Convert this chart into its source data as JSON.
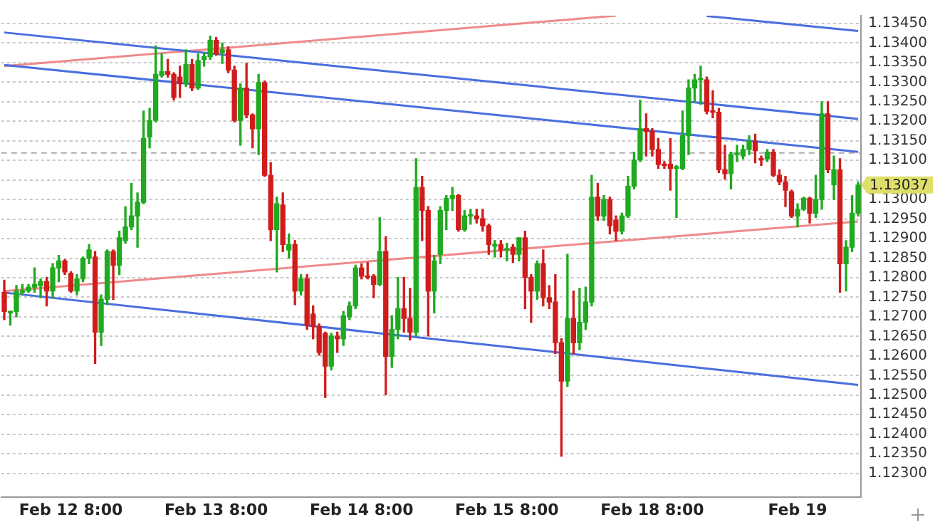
{
  "chart_data": {
    "type": "candlestick",
    "categories": [
      null,
      null,
      null,
      null,
      null,
      null,
      null,
      null,
      null,
      null,
      null,
      "Feb 12 8:00",
      null,
      null,
      null,
      null,
      null,
      null,
      null,
      null,
      null,
      null,
      null,
      null,
      null,
      null,
      null,
      null,
      null,
      null,
      null,
      null,
      null,
      null,
      null,
      "Feb 13 8:00",
      null,
      null,
      null,
      null,
      null,
      null,
      null,
      null,
      null,
      null,
      null,
      null,
      null,
      null,
      null,
      null,
      null,
      null,
      null,
      null,
      null,
      null,
      null,
      "Feb 14 8:00",
      null,
      null,
      null,
      null,
      null,
      null,
      null,
      null,
      null,
      null,
      null,
      null,
      null,
      null,
      null,
      null,
      null,
      null,
      null,
      null,
      null,
      null,
      null,
      "Feb 15 8:00",
      null,
      null,
      null,
      null,
      null,
      null,
      null,
      null,
      null,
      null,
      null,
      null,
      null,
      null,
      null,
      null,
      null,
      null,
      null,
      null,
      null,
      null,
      null,
      "Feb 18 8:00",
      null,
      null,
      null,
      null,
      null,
      null,
      null,
      null,
      null,
      null,
      null,
      null,
      null,
      null,
      null,
      null,
      null,
      null,
      null,
      null,
      null,
      null,
      null,
      "Feb 19",
      null,
      null,
      null,
      null,
      null,
      null,
      null,
      null,
      null,
      null
    ],
    "ohlc": [
      [
        1.12763,
        1.12794,
        1.12693,
        1.12714
      ],
      [
        1.1271,
        1.12714,
        1.12679,
        1.12714
      ],
      [
        1.12714,
        1.1278,
        1.127,
        1.12766
      ],
      [
        1.12763,
        1.12783,
        1.12756,
        1.12766
      ],
      [
        1.12766,
        1.12783,
        1.12763,
        1.12776
      ],
      [
        1.12776,
        1.12825,
        1.12763,
        1.12783
      ],
      [
        1.1278,
        1.12797,
        1.12749,
        1.1279
      ],
      [
        1.1279,
        1.12801,
        1.12728,
        1.12766
      ],
      [
        1.12766,
        1.12836,
        1.12749,
        1.12825
      ],
      [
        1.12825,
        1.12857,
        1.1279,
        1.12843
      ],
      [
        1.12843,
        1.12846,
        1.12808,
        1.12815
      ],
      [
        1.12811,
        1.12815,
        1.12763,
        1.12766
      ],
      [
        1.12766,
        1.12808,
        1.12756,
        1.12797
      ],
      [
        1.12797,
        1.12853,
        1.1279,
        1.1285
      ],
      [
        1.1285,
        1.12885,
        1.12836,
        1.12871
      ],
      [
        1.12853,
        1.12867,
        1.12581,
        1.12661
      ],
      [
        1.12661,
        1.12756,
        1.12627,
        1.12745
      ],
      [
        1.12745,
        1.12871,
        1.12731,
        1.12867
      ],
      [
        1.12867,
        1.12871,
        1.12745,
        1.12832
      ],
      [
        1.12832,
        1.12919,
        1.12808,
        1.12902
      ],
      [
        1.12895,
        1.12982,
        1.12888,
        1.1293
      ],
      [
        1.1293,
        1.13041,
        1.12923,
        1.12958
      ],
      [
        1.12958,
        1.13017,
        1.12878,
        1.12993
      ],
      [
        1.12993,
        1.13226,
        1.12989,
        1.13156
      ],
      [
        1.1316,
        1.13233,
        1.13132,
        1.13202
      ],
      [
        1.13202,
        1.13393,
        1.13198,
        1.1332
      ],
      [
        1.13317,
        1.13372,
        1.13313,
        1.13327
      ],
      [
        1.13327,
        1.13358,
        1.13313,
        1.1332
      ],
      [
        1.1332,
        1.13324,
        1.13254,
        1.13261
      ],
      [
        1.13313,
        1.13341,
        1.13261,
        1.13296
      ],
      [
        1.13296,
        1.13383,
        1.13289,
        1.13345
      ],
      [
        1.13345,
        1.13358,
        1.13278,
        1.13285
      ],
      [
        1.13285,
        1.13372,
        1.13282,
        1.13355
      ],
      [
        1.13358,
        1.13376,
        1.13341,
        1.13365
      ],
      [
        1.13365,
        1.13418,
        1.13358,
        1.13407
      ],
      [
        1.13407,
        1.13414,
        1.13369,
        1.13372
      ],
      [
        1.13376,
        1.134,
        1.13348,
        1.13383
      ],
      [
        1.13383,
        1.1339,
        1.13324,
        1.13331
      ],
      [
        1.13331,
        1.13341,
        1.13198,
        1.13202
      ],
      [
        1.13202,
        1.13296,
        1.13139,
        1.13285
      ],
      [
        1.13285,
        1.13348,
        1.13209,
        1.13216
      ],
      [
        1.13216,
        1.13219,
        1.13132,
        1.13181
      ],
      [
        1.13181,
        1.1332,
        1.13115,
        1.13299
      ],
      [
        1.13299,
        1.13303,
        1.13059,
        1.13062
      ],
      [
        1.13062,
        1.13094,
        1.12895,
        1.12923
      ],
      [
        1.12923,
        1.13006,
        1.12815,
        1.12989
      ],
      [
        1.12986,
        1.13017,
        1.12867,
        1.12885
      ],
      [
        1.12871,
        1.12912,
        1.1285,
        1.12885
      ],
      [
        1.12885,
        1.12895,
        1.12731,
        1.12766
      ],
      [
        1.12766,
        1.12808,
        1.12756,
        1.12797
      ],
      [
        1.12797,
        1.12808,
        1.12668,
        1.12679
      ],
      [
        1.12707,
        1.12728,
        1.12644,
        1.12675
      ],
      [
        1.12675,
        1.12682,
        1.12602,
        1.12609
      ],
      [
        1.12658,
        1.12661,
        1.12494,
        1.12574
      ],
      [
        1.12574,
        1.12658,
        1.12564,
        1.12651
      ],
      [
        1.12651,
        1.12661,
        1.12609,
        1.12644
      ],
      [
        1.12644,
        1.12714,
        1.12627,
        1.12703
      ],
      [
        1.127,
        1.12738,
        1.12693,
        1.12728
      ],
      [
        1.12728,
        1.12832,
        1.12721,
        1.12825
      ],
      [
        1.12825,
        1.12836,
        1.12797,
        1.12804
      ],
      [
        1.12804,
        1.12839,
        1.12797,
        1.12801
      ],
      [
        1.12804,
        1.12808,
        1.12749,
        1.12783
      ],
      [
        1.12783,
        1.12954,
        1.1278,
        1.12867
      ],
      [
        1.12867,
        1.12905,
        1.12501,
        1.12599
      ],
      [
        1.12599,
        1.12703,
        1.12571,
        1.12668
      ],
      [
        1.12668,
        1.12801,
        1.12644,
        1.12721
      ],
      [
        1.12721,
        1.12801,
        1.12661,
        1.12696
      ],
      [
        1.12696,
        1.12773,
        1.12641,
        1.12661
      ],
      [
        1.12661,
        1.13104,
        1.12651,
        1.13031
      ],
      [
        1.13031,
        1.13059,
        1.12895,
        1.12972
      ],
      [
        1.12972,
        1.12982,
        1.12651,
        1.12766
      ],
      [
        1.12766,
        1.12857,
        1.1271,
        1.12843
      ],
      [
        1.1286,
        1.12982,
        1.12836,
        1.12972
      ],
      [
        1.12972,
        1.1301,
        1.12923,
        1.13003
      ],
      [
        1.13003,
        1.13031,
        1.12972,
        1.1301
      ],
      [
        1.1301,
        1.13013,
        1.12919,
        1.12923
      ],
      [
        1.12923,
        1.12972,
        1.12919,
        1.12958
      ],
      [
        1.12958,
        1.12975,
        1.12937,
        1.12958
      ],
      [
        1.12958,
        1.12975,
        1.1294,
        1.12951
      ],
      [
        1.12951,
        1.12975,
        1.12919,
        1.12933
      ],
      [
        1.12933,
        1.12937,
        1.1286,
        1.12885
      ],
      [
        1.12881,
        1.12895,
        1.12853,
        1.12885
      ],
      [
        1.12885,
        1.12895,
        1.12853,
        1.12871
      ],
      [
        1.12871,
        1.12888,
        1.12843,
        1.12874
      ],
      [
        1.12878,
        1.12885,
        1.12839,
        1.1286
      ],
      [
        1.1286,
        1.12902,
        1.12843,
        1.12902
      ],
      [
        1.12902,
        1.12919,
        1.12721,
        1.12801
      ],
      [
        1.12801,
        1.12808,
        1.12686,
        1.12766
      ],
      [
        1.12766,
        1.12843,
        1.12745,
        1.12836
      ],
      [
        1.12836,
        1.12871,
        1.12728,
        1.12749
      ],
      [
        1.12749,
        1.1278,
        1.12721,
        1.12738
      ],
      [
        1.12738,
        1.12808,
        1.12606,
        1.12634
      ],
      [
        1.12634,
        1.12644,
        1.12344,
        1.12536
      ],
      [
        1.12536,
        1.1286,
        1.12522,
        1.12696
      ],
      [
        1.12696,
        1.12766,
        1.12606,
        1.12634
      ],
      [
        1.12634,
        1.12773,
        1.12616,
        1.12686
      ],
      [
        1.12686,
        1.12776,
        1.12668,
        1.12738
      ],
      [
        1.12738,
        1.13062,
        1.12728,
        1.13006
      ],
      [
        1.13006,
        1.13041,
        1.12947,
        1.12958
      ],
      [
        1.12958,
        1.1301,
        1.12947,
        1.13
      ],
      [
        1.13,
        1.13006,
        1.12912,
        1.12933
      ],
      [
        1.12947,
        1.12958,
        1.12895,
        1.12919
      ],
      [
        1.12919,
        1.12965,
        1.12912,
        1.12958
      ],
      [
        1.12958,
        1.13059,
        1.12954,
        1.13034
      ],
      [
        1.13034,
        1.13121,
        1.13027,
        1.13101
      ],
      [
        1.13101,
        1.13254,
        1.13097,
        1.13181
      ],
      [
        1.13181,
        1.13219,
        1.13111,
        1.13174
      ],
      [
        1.13174,
        1.13181,
        1.13111,
        1.13128
      ],
      [
        1.13128,
        1.13156,
        1.1308,
        1.1309
      ],
      [
        1.1309,
        1.13097,
        1.1308,
        1.13087
      ],
      [
        1.1309,
        1.13156,
        1.13024,
        1.1308
      ],
      [
        1.1308,
        1.13087,
        1.12954,
        1.1308
      ],
      [
        1.1308,
        1.13226,
        1.13076,
        1.13163
      ],
      [
        1.13163,
        1.13306,
        1.13115,
        1.13285
      ],
      [
        1.13285,
        1.1332,
        1.1325,
        1.13306
      ],
      [
        1.13306,
        1.13341,
        1.13243,
        1.13306
      ],
      [
        1.13306,
        1.13313,
        1.13219,
        1.13226
      ],
      [
        1.13226,
        1.13278,
        1.13209,
        1.13223
      ],
      [
        1.13223,
        1.13233,
        1.13069,
        1.13076
      ],
      [
        1.13076,
        1.13139,
        1.13052,
        1.13066
      ],
      [
        1.13066,
        1.13121,
        1.13027,
        1.13115
      ],
      [
        1.13115,
        1.13139,
        1.13097,
        1.13115
      ],
      [
        1.13111,
        1.13139,
        1.13104,
        1.13128
      ],
      [
        1.13128,
        1.13163,
        1.13115,
        1.13149
      ],
      [
        1.13149,
        1.13167,
        1.13094,
        1.13125
      ],
      [
        1.13104,
        1.13111,
        1.13087,
        1.13101
      ],
      [
        1.13104,
        1.13128,
        1.13097,
        1.13121
      ],
      [
        1.13121,
        1.13128,
        1.13059,
        1.13062
      ],
      [
        1.13062,
        1.13076,
        1.13038,
        1.13045
      ],
      [
        1.13045,
        1.13059,
        1.12982,
        1.13024
      ],
      [
        1.1302,
        1.13024,
        1.12954,
        1.12958
      ],
      [
        1.12958,
        1.12989,
        1.1293,
        1.12975
      ],
      [
        1.12975,
        1.13006,
        1.12972,
        1.13003
      ],
      [
        1.13003,
        1.13006,
        1.1294,
        1.12965
      ],
      [
        1.12965,
        1.13062,
        1.12954,
        1.13
      ],
      [
        1.13,
        1.1325,
        1.12975,
        1.13219
      ],
      [
        1.13219,
        1.1325,
        1.13069,
        1.13076
      ],
      [
        1.13038,
        1.13111,
        1.13,
        1.13076
      ],
      [
        1.13076,
        1.13104,
        1.12763,
        1.12836
      ],
      [
        1.12836,
        1.12895,
        1.12766,
        1.12878
      ],
      [
        1.12878,
        1.1301,
        1.12867,
        1.12965
      ],
      [
        1.12965,
        1.13045,
        1.12958,
        1.13037
      ]
    ],
    "series": [
      {
        "type": "line",
        "color": "#4a6ee0",
        "values": [
          1.13427,
          null,
          null,
          null,
          null,
          null,
          null,
          null,
          null,
          null,
          null,
          null,
          null,
          null,
          null,
          null,
          null,
          null,
          null,
          null,
          null,
          null,
          null,
          null,
          null,
          null,
          null,
          null,
          null,
          null,
          null,
          null,
          null,
          null,
          null,
          null,
          null,
          null,
          null,
          null,
          null,
          null,
          null,
          null,
          null,
          null,
          null,
          null,
          null,
          null,
          null,
          null,
          null,
          null,
          null,
          null,
          null,
          null,
          null,
          null,
          null,
          null,
          null,
          null,
          null,
          null,
          null,
          null,
          null,
          null,
          null,
          null,
          null,
          null,
          null,
          null,
          null,
          null,
          null,
          null,
          null,
          null,
          null,
          null,
          null,
          null,
          null,
          null,
          null,
          null,
          null,
          null,
          null,
          null,
          null,
          null,
          null,
          null,
          null,
          null,
          null,
          null,
          null,
          null,
          null,
          null,
          null,
          null,
          null,
          null,
          null,
          null,
          null,
          null,
          null,
          null,
          null,
          null,
          null,
          null,
          null,
          null,
          null,
          null,
          null,
          null,
          null,
          null,
          null,
          null,
          null,
          null,
          null,
          null,
          null,
          null,
          null,
          null,
          null,
          null,
          null,
          1.13206
        ]
      },
      {
        "type": "line",
        "color": "#4a6ee0",
        "values": [
          1.13344,
          null,
          null,
          null,
          null,
          null,
          null,
          null,
          null,
          null,
          null,
          null,
          null,
          null,
          null,
          null,
          null,
          null,
          null,
          null,
          null,
          null,
          null,
          null,
          null,
          null,
          null,
          null,
          null,
          null,
          null,
          null,
          null,
          null,
          null,
          null,
          null,
          null,
          null,
          null,
          null,
          null,
          null,
          null,
          null,
          null,
          null,
          null,
          null,
          null,
          null,
          null,
          null,
          null,
          null,
          null,
          null,
          null,
          null,
          null,
          null,
          null,
          null,
          null,
          null,
          null,
          null,
          null,
          null,
          null,
          null,
          null,
          null,
          null,
          null,
          null,
          null,
          null,
          null,
          null,
          null,
          null,
          null,
          null,
          null,
          null,
          null,
          null,
          null,
          null,
          null,
          null,
          null,
          null,
          null,
          null,
          null,
          null,
          null,
          null,
          null,
          null,
          null,
          null,
          null,
          null,
          null,
          null,
          null,
          null,
          null,
          null,
          null,
          null,
          null,
          null,
          null,
          null,
          null,
          null,
          null,
          null,
          null,
          null,
          null,
          null,
          null,
          null,
          null,
          null,
          null,
          null,
          null,
          null,
          null,
          null,
          null,
          null,
          null,
          null,
          null,
          1.13122
        ]
      },
      {
        "type": "line",
        "color": "#4a6ee0",
        "values": [
          null,
          null,
          null,
          null,
          null,
          null,
          null,
          null,
          null,
          null,
          null,
          null,
          null,
          null,
          null,
          null,
          null,
          null,
          null,
          null,
          null,
          null,
          null,
          null,
          null,
          null,
          null,
          null,
          null,
          null,
          null,
          null,
          null,
          null,
          null,
          null,
          null,
          null,
          null,
          null,
          null,
          null,
          null,
          null,
          null,
          null,
          null,
          null,
          null,
          null,
          null,
          null,
          null,
          null,
          null,
          null,
          null,
          null,
          null,
          null,
          null,
          null,
          null,
          null,
          null,
          null,
          null,
          null,
          null,
          null,
          null,
          null,
          null,
          null,
          null,
          null,
          null,
          null,
          null,
          null,
          null,
          null,
          null,
          null,
          null,
          null,
          null,
          null,
          null,
          null,
          null,
          null,
          null,
          null,
          null,
          null,
          null,
          null,
          null,
          null,
          null,
          null,
          null,
          null,
          null,
          null,
          null,
          null,
          null,
          null,
          null,
          null,
          null,
          null,
          null,
          null,
          1.13469,
          null,
          null,
          null,
          null,
          null,
          null,
          null,
          null,
          null,
          null,
          null,
          null,
          null,
          null,
          null,
          null,
          null,
          null,
          null,
          null,
          null,
          null,
          null,
          null,
          1.13431
        ]
      },
      {
        "type": "line",
        "color": "#4a6ee0",
        "values": [
          1.12762,
          null,
          null,
          null,
          null,
          null,
          null,
          null,
          null,
          null,
          null,
          null,
          null,
          null,
          null,
          null,
          null,
          null,
          null,
          null,
          null,
          null,
          null,
          null,
          null,
          null,
          null,
          null,
          null,
          null,
          null,
          null,
          null,
          null,
          null,
          null,
          null,
          null,
          null,
          null,
          null,
          null,
          null,
          null,
          null,
          null,
          null,
          null,
          null,
          null,
          null,
          null,
          null,
          null,
          null,
          null,
          null,
          null,
          null,
          null,
          null,
          null,
          null,
          null,
          null,
          null,
          null,
          null,
          null,
          null,
          null,
          null,
          null,
          null,
          null,
          null,
          null,
          null,
          null,
          null,
          null,
          null,
          null,
          null,
          null,
          null,
          null,
          null,
          null,
          null,
          null,
          null,
          null,
          null,
          null,
          null,
          null,
          null,
          null,
          null,
          null,
          null,
          null,
          null,
          null,
          null,
          null,
          null,
          null,
          null,
          null,
          null,
          null,
          null,
          null,
          null,
          null,
          null,
          null,
          null,
          null,
          null,
          null,
          null,
          null,
          null,
          null,
          null,
          null,
          null,
          null,
          null,
          null,
          null,
          null,
          null,
          null,
          null,
          null,
          null,
          null,
          1.12526
        ]
      },
      {
        "type": "line",
        "color": "#f08a8a",
        "values": [
          1.12766,
          null,
          null,
          null,
          null,
          null,
          null,
          null,
          null,
          null,
          null,
          null,
          null,
          null,
          null,
          null,
          null,
          null,
          null,
          null,
          null,
          null,
          null,
          null,
          null,
          null,
          null,
          null,
          null,
          null,
          null,
          null,
          null,
          null,
          null,
          null,
          null,
          null,
          null,
          null,
          null,
          null,
          null,
          null,
          null,
          null,
          null,
          null,
          null,
          null,
          null,
          null,
          null,
          null,
          null,
          null,
          null,
          null,
          null,
          null,
          null,
          null,
          null,
          null,
          null,
          null,
          null,
          null,
          null,
          null,
          null,
          null,
          null,
          null,
          null,
          null,
          null,
          null,
          null,
          null,
          null,
          null,
          null,
          null,
          null,
          null,
          null,
          null,
          null,
          null,
          null,
          null,
          null,
          null,
          null,
          null,
          null,
          null,
          null,
          null,
          null,
          null,
          null,
          null,
          null,
          null,
          null,
          null,
          null,
          null,
          null,
          null,
          null,
          null,
          null,
          null,
          null,
          null,
          null,
          null,
          null,
          null,
          null,
          null,
          null,
          null,
          null,
          null,
          null,
          null,
          null,
          null,
          null,
          null,
          null,
          null,
          null,
          null,
          null,
          null,
          null,
          1.12944
        ]
      },
      {
        "type": "line",
        "color": "#f08a8a",
        "values": [
          1.13341,
          null,
          null,
          null,
          null,
          null,
          null,
          null,
          null,
          null,
          null,
          null,
          null,
          null,
          null,
          null,
          null,
          null,
          null,
          null,
          null,
          null,
          null,
          null,
          null,
          null,
          null,
          null,
          null,
          null,
          null,
          null,
          null,
          null,
          null,
          null,
          null,
          null,
          null,
          null,
          null,
          null,
          null,
          null,
          null,
          null,
          null,
          null,
          null,
          null,
          null,
          null,
          null,
          null,
          null,
          null,
          null,
          null,
          null,
          null,
          null,
          null,
          null,
          null,
          null,
          null,
          null,
          null,
          null,
          null,
          null,
          null,
          null,
          null,
          null,
          null,
          null,
          null,
          null,
          null,
          null,
          null,
          null,
          null,
          null,
          null,
          null,
          null,
          null,
          null,
          null,
          null,
          null,
          null,
          null,
          null,
          null,
          null,
          null,
          null,
          null,
          1.1347,
          null,
          null,
          null,
          null,
          null,
          null,
          null,
          null,
          null,
          null,
          null,
          null,
          null,
          null,
          null,
          null,
          null,
          null,
          null,
          null,
          null,
          null,
          null,
          null,
          null,
          null,
          null,
          null,
          null,
          null,
          null,
          null,
          null,
          null,
          null,
          null,
          null,
          null,
          null,
          null
        ]
      }
    ],
    "ylim": [
      1.1224,
      1.1347
    ],
    "yticks": [
      {
        "value": 1.123,
        "label": "1.12300"
      },
      {
        "value": 1.1235,
        "label": "1.12350"
      },
      {
        "value": 1.124,
        "label": "1.12400"
      },
      {
        "value": 1.1245,
        "label": "1.12450"
      },
      {
        "value": 1.125,
        "label": "1.12500"
      },
      {
        "value": 1.1255,
        "label": "1.12550"
      },
      {
        "value": 1.126,
        "label": "1.12600"
      },
      {
        "value": 1.1265,
        "label": "1.12650"
      },
      {
        "value": 1.127,
        "label": "1.12700"
      },
      {
        "value": 1.1275,
        "label": "1.12750"
      },
      {
        "value": 1.128,
        "label": "1.12800"
      },
      {
        "value": 1.1285,
        "label": "1.12850"
      },
      {
        "value": 1.129,
        "label": "1.12900"
      },
      {
        "value": 1.1295,
        "label": "1.12950"
      },
      {
        "value": 1.13,
        "label": "1.13000"
      },
      {
        "value": 1.1305,
        "label": null
      },
      {
        "value": 1.131,
        "label": "1.13100"
      },
      {
        "value": 1.1315,
        "label": "1.13150"
      },
      {
        "value": 1.132,
        "label": "1.13200"
      },
      {
        "value": 1.1325,
        "label": "1.13250"
      },
      {
        "value": 1.133,
        "label": "1.13300"
      },
      {
        "value": 1.1335,
        "label": "1.13350"
      },
      {
        "value": 1.134,
        "label": "1.13400"
      },
      {
        "value": 1.1345,
        "label": "1.13450"
      }
    ],
    "grid": "y",
    "ref_lines": [
      {
        "axis": "y",
        "value": 1.13119,
        "line_style": "dashed",
        "color": "#aaaaaa"
      }
    ],
    "annotations": [
      "1.13037"
    ]
  }
}
